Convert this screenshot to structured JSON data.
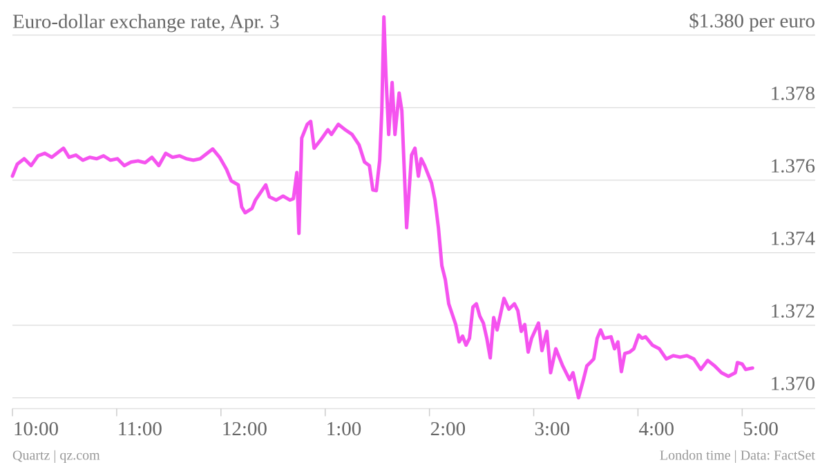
{
  "chart_data": {
    "type": "line",
    "title": "Euro-dollar exchange rate, Apr. 3",
    "source": "Quartz | qz.com",
    "note": "London time | Data: FactSet",
    "color": "#f553ef",
    "grid": true,
    "x": [
      10.0,
      10.046,
      10.113,
      10.179,
      10.245,
      10.311,
      10.377,
      10.444,
      10.49,
      10.543,
      10.609,
      10.675,
      10.742,
      10.808,
      10.874,
      10.94,
      11.007,
      11.073,
      11.139,
      11.205,
      11.272,
      11.338,
      11.404,
      11.47,
      11.536,
      11.603,
      11.669,
      11.735,
      11.801,
      11.868,
      11.921,
      11.987,
      12.053,
      12.099,
      12.166,
      12.199,
      12.232,
      12.298,
      12.331,
      12.397,
      12.43,
      12.464,
      12.53,
      12.596,
      12.662,
      12.695,
      12.728,
      12.748,
      12.775,
      12.828,
      12.861,
      12.894,
      12.96,
      13.026,
      13.06,
      13.126,
      13.192,
      13.258,
      13.325,
      13.377,
      13.424,
      13.457,
      13.49,
      13.523,
      13.543,
      13.563,
      13.583,
      13.609,
      13.642,
      13.669,
      13.709,
      13.735,
      13.781,
      13.828,
      13.861,
      13.894,
      13.921,
      13.954,
      14.02,
      14.053,
      14.086,
      14.119,
      14.152,
      14.185,
      14.219,
      14.252,
      14.285,
      14.318,
      14.351,
      14.384,
      14.417,
      14.45,
      14.483,
      14.517,
      14.55,
      14.583,
      14.616,
      14.649,
      14.715,
      14.762,
      14.815,
      14.848,
      14.881,
      14.914,
      14.947,
      14.98,
      15.046,
      15.079,
      15.126,
      15.162,
      15.212,
      15.278,
      15.344,
      15.377,
      15.43,
      15.477,
      15.51,
      15.543,
      15.576,
      15.609,
      15.642,
      15.675,
      15.742,
      15.775,
      15.808,
      15.841,
      15.874,
      15.921,
      15.96,
      16.007,
      16.04,
      16.073,
      16.139,
      16.205,
      16.272,
      16.338,
      16.404,
      16.47,
      16.536,
      16.603,
      16.669,
      16.735,
      16.801,
      16.868,
      16.934,
      16.954,
      17.0,
      17.033,
      17.099
    ],
    "values": [
      1.37611,
      1.37644,
      1.37659,
      1.3764,
      1.37667,
      1.37674,
      1.37663,
      1.37678,
      1.37688,
      1.37663,
      1.37669,
      1.37655,
      1.37663,
      1.37659,
      1.37667,
      1.37655,
      1.37659,
      1.3764,
      1.3765,
      1.37653,
      1.37648,
      1.37663,
      1.3764,
      1.37674,
      1.37663,
      1.37667,
      1.37659,
      1.37655,
      1.37659,
      1.37674,
      1.37686,
      1.37663,
      1.3763,
      1.37598,
      1.37587,
      1.37526,
      1.3751,
      1.37522,
      1.37545,
      1.37573,
      1.37587,
      1.37554,
      1.37545,
      1.37556,
      1.37545,
      1.37549,
      1.37621,
      1.37453,
      1.37716,
      1.37754,
      1.37762,
      1.37688,
      1.37712,
      1.37739,
      1.37726,
      1.37754,
      1.37739,
      1.37726,
      1.37697,
      1.3765,
      1.3764,
      1.37573,
      1.37571,
      1.37655,
      1.37792,
      1.3805,
      1.37888,
      1.37726,
      1.37869,
      1.37726,
      1.3784,
      1.37792,
      1.37469,
      1.37669,
      1.37688,
      1.37611,
      1.37659,
      1.3764,
      1.37592,
      1.37545,
      1.37469,
      1.37364,
      1.37326,
      1.37259,
      1.3723,
      1.37202,
      1.37154,
      1.3717,
      1.37145,
      1.37164,
      1.3725,
      1.37259,
      1.37225,
      1.37206,
      1.37164,
      1.3711,
      1.37221,
      1.37187,
      1.37274,
      1.37244,
      1.37259,
      1.3724,
      1.37183,
      1.37202,
      1.37126,
      1.37164,
      1.37206,
      1.3713,
      1.37183,
      1.37069,
      1.37135,
      1.37088,
      1.3705,
      1.37069,
      1.37,
      1.3705,
      1.37088,
      1.37097,
      1.37107,
      1.37164,
      1.37187,
      1.37164,
      1.37168,
      1.37135,
      1.37154,
      1.37072,
      1.37122,
      1.37126,
      1.37135,
      1.37173,
      1.37164,
      1.37168,
      1.37145,
      1.37135,
      1.37107,
      1.37116,
      1.37112,
      1.37116,
      1.37107,
      1.37078,
      1.37103,
      1.37088,
      1.37069,
      1.37059,
      1.37069,
      1.37097,
      1.37093,
      1.37078,
      1.37082
    ],
    "xlim": [
      10,
      17.7
    ],
    "xticks": [
      {
        "value": 10,
        "label": "10:00"
      },
      {
        "value": 11,
        "label": "11:00"
      },
      {
        "value": 12,
        "label": "12:00"
      },
      {
        "value": 13,
        "label": "1:00"
      },
      {
        "value": 14,
        "label": "2:00"
      },
      {
        "value": 15,
        "label": "3:00"
      },
      {
        "value": 16,
        "label": "4:00"
      },
      {
        "value": 17,
        "label": "5:00"
      }
    ],
    "ylim": [
      1.3697,
      1.3807
    ],
    "yticks": [
      {
        "value": 1.37,
        "label": "1.370"
      },
      1.372,
      1.374,
      1.376,
      1.378,
      {
        "value": 1.38,
        "label": "$1.380 per euro"
      }
    ]
  }
}
